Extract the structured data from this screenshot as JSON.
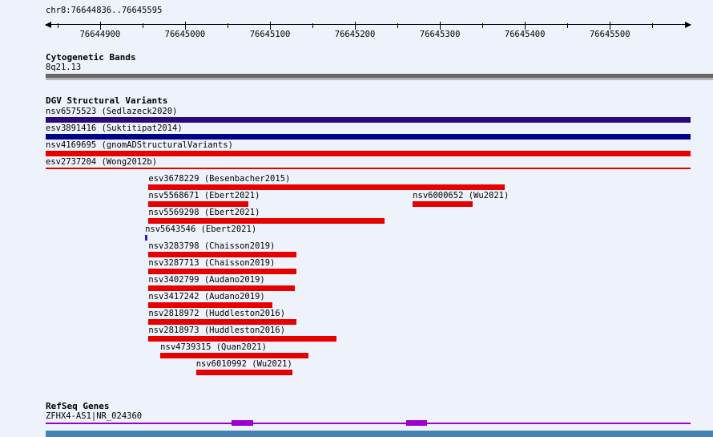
{
  "colors": {
    "background": "#eef3fb",
    "variant_red": "#e60000",
    "sedlazeck_purple": "#2a0a7a",
    "suktitipat_navy": "#00008b",
    "insertion_blue": "#2222cc",
    "cytoband_gray": "#666666",
    "gene_purple": "#9900cc",
    "bottom_bar_blue": "#4682b4"
  },
  "axis": {
    "min": 76644836,
    "max": 76645595
  },
  "header": {
    "region_label": "chr8:76644836..76645595",
    "ticks": [
      76644900,
      76645000,
      76645100,
      76645200,
      76645300,
      76645400,
      76645500
    ]
  },
  "cytoband": {
    "title": "Cytogenetic Bands",
    "band_label": "8q21.13"
  },
  "dgv": {
    "title": "DGV Structural Variants",
    "rows": [
      [
        {
          "label": "nsv6575523 (Sedlazeck2020)",
          "full": true,
          "color": "#2a0a7a"
        }
      ],
      [
        {
          "label": "esv3891416 (Suktitipat2014)",
          "full": true,
          "color": "#00008b"
        }
      ],
      [
        {
          "label": "nsv4169695 (gnomADStructuralVariants)",
          "full": true
        }
      ],
      [
        {
          "label": "esv2737204 (Wong2012b)",
          "full": true,
          "h": 2
        }
      ],
      [
        {
          "label": "esv3678229 (Besenbacher2015)",
          "start": 76644957,
          "end": 76645376
        }
      ],
      [
        {
          "label": "nsv5568671 (Ebert2021)",
          "start": 76644957,
          "end": 76645075
        },
        {
          "label": "nsv6000652 (Wu2021)",
          "start": 76645268,
          "end": 76645339
        }
      ],
      [
        {
          "label": "nsv5569298 (Ebert2021)",
          "start": 76644957,
          "end": 76645235
        }
      ],
      [
        {
          "label": "nsv5643546 (Ebert2021)",
          "start": 76644953,
          "end": 76644956,
          "color": "#2222cc"
        }
      ],
      [
        {
          "label": "nsv3283798 (Chaisson2019)",
          "start": 76644957,
          "end": 76645131
        }
      ],
      [
        {
          "label": "nsv3287713 (Chaisson2019)",
          "start": 76644957,
          "end": 76645131
        }
      ],
      [
        {
          "label": "nsv3402799 (Audano2019)",
          "start": 76644957,
          "end": 76645129
        }
      ],
      [
        {
          "label": "nsv3417242 (Audano2019)",
          "start": 76644957,
          "end": 76645103
        }
      ],
      [
        {
          "label": "nsv2818972 (Huddleston2016)",
          "start": 76644957,
          "end": 76645131
        }
      ],
      [
        {
          "label": "nsv2818973 (Huddleston2016)",
          "start": 76644957,
          "end": 76645178
        }
      ],
      [
        {
          "label": "nsv4739315 (Quan2021)",
          "start": 76644971,
          "end": 76645145
        }
      ],
      [
        {
          "label": "nsv6010992 (Wu2021)",
          "start": 76645013,
          "end": 76645126
        }
      ]
    ]
  },
  "refseq": {
    "title": "RefSeq Genes",
    "gene_label": "ZFHX4-AS1|NR_024360",
    "exons": [
      {
        "start": 76645055,
        "end": 76645080
      },
      {
        "start": 76645260,
        "end": 76645285
      }
    ]
  }
}
